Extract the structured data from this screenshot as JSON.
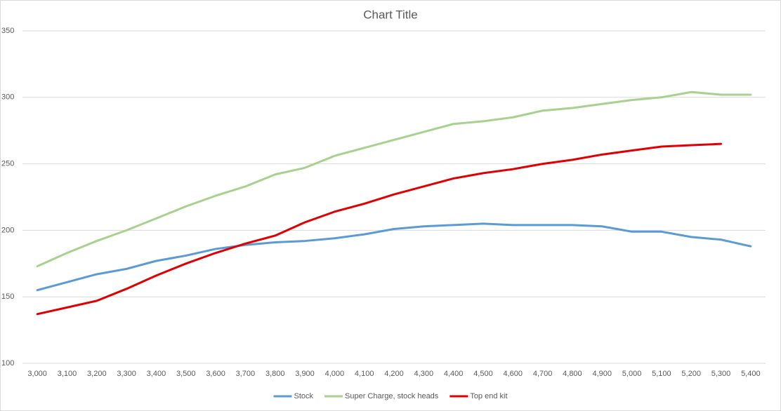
{
  "chart_data": {
    "type": "line",
    "title": "Chart Title",
    "categories": [
      "3,000",
      "3,100",
      "3,200",
      "3,300",
      "3,400",
      "3,500",
      "3,600",
      "3,700",
      "3,800",
      "3,900",
      "4,000",
      "4,100",
      "4,200",
      "4,300",
      "4,400",
      "4,500",
      "4,600",
      "4,700",
      "4,800",
      "4,900",
      "5,000",
      "5,100",
      "5,200",
      "5,300",
      "5,400"
    ],
    "series": [
      {
        "name": "Stock",
        "color": "#5b9bd5",
        "values": [
          155,
          161,
          167,
          171,
          177,
          181,
          186,
          189,
          191,
          192,
          194,
          197,
          201,
          203,
          204,
          205,
          204,
          204,
          204,
          203,
          199,
          199,
          195,
          193,
          188
        ]
      },
      {
        "name": "Super Charge, stock heads",
        "color": "#a9d18e",
        "values": [
          173,
          183,
          192,
          200,
          209,
          218,
          226,
          233,
          242,
          247,
          256,
          262,
          268,
          274,
          280,
          282,
          285,
          290,
          292,
          295,
          298,
          300,
          304,
          302,
          302
        ]
      },
      {
        "name": "Top end kit",
        "color": "#e00000",
        "values": [
          137,
          142,
          147,
          156,
          166,
          175,
          183,
          190,
          196,
          206,
          214,
          220,
          227,
          233,
          239,
          243,
          246,
          250,
          253,
          257,
          260,
          263,
          264,
          265,
          null
        ]
      }
    ],
    "ylim": [
      100,
      350
    ],
    "yticks": [
      100,
      150,
      200,
      250,
      300,
      350
    ],
    "grid": true,
    "legend": "bottom"
  }
}
